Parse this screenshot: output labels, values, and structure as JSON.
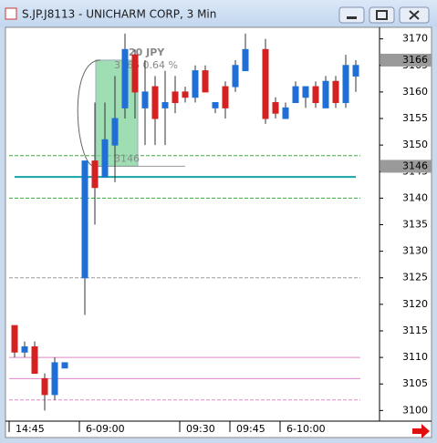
{
  "window": {
    "title": "S.JP.J8113 - UNICHARM CORP, 3 Min"
  },
  "chart_data": {
    "type": "candlestick",
    "categories": [
      "14:45",
      null,
      null,
      null,
      null,
      null,
      null,
      "6-09:00",
      null,
      null,
      null,
      null,
      null,
      null,
      null,
      null,
      null,
      "09:30",
      null,
      null,
      null,
      null,
      "09:45",
      null,
      null,
      null,
      null,
      "6-10:00",
      null,
      null,
      null,
      null,
      null,
      null,
      null
    ],
    "open": [
      3116,
      3111,
      3112,
      3106,
      3103,
      3108,
      null,
      3125,
      3147,
      3144,
      3150,
      3157,
      3167,
      3157,
      3161,
      3157,
      3160,
      3160,
      3159,
      3164,
      3157,
      3161,
      3161,
      3164,
      null,
      3168,
      3158,
      3155,
      3158,
      3159,
      3161,
      3157,
      3162,
      3158,
      3163
    ],
    "high": [
      3116,
      3113,
      3113,
      3107,
      3110,
      3109,
      null,
      3147,
      3158,
      3158,
      3163,
      3171,
      3168,
      3166,
      3163,
      3164,
      3163,
      3161,
      3165,
      3165,
      3158,
      3162,
      3166,
      3171,
      null,
      3170,
      3159,
      3158,
      3162,
      3161,
      3162,
      3163,
      3163,
      3167,
      3166
    ],
    "low": [
      3110,
      3110,
      3107,
      3100,
      3102,
      3108,
      null,
      3118,
      3135,
      3144,
      3143,
      3155,
      3155,
      3150,
      3150,
      3150,
      3156,
      3158,
      3158,
      3160,
      3156,
      3155,
      3160,
      3164,
      null,
      3154,
      3155,
      3155,
      3158,
      3157,
      3157,
      3157,
      3157,
      3157,
      3160
    ],
    "close": [
      3111,
      3112,
      3107,
      3103,
      3109,
      3109,
      null,
      3147,
      3142,
      3151,
      3155,
      3168,
      3160,
      3160,
      3155,
      3158,
      3158,
      3159,
      3164,
      3160,
      3158,
      3157,
      3165,
      3168,
      null,
      3155,
      3156,
      3157,
      3161,
      3161,
      3158,
      3162,
      3158,
      3165,
      3165
    ],
    "up_color": "#1f6fd6",
    "down_color": "#d42222",
    "ylim": [
      3098,
      3172
    ],
    "yticks": [
      3100,
      3105,
      3110,
      3115,
      3120,
      3125,
      3130,
      3135,
      3140,
      3145,
      3150,
      3155,
      3160,
      3165,
      3170
    ],
    "price_labels": [
      3166,
      3146
    ],
    "lines": [
      {
        "value": 3144,
        "color": "#18a5a5",
        "style": "solid"
      },
      {
        "value": 3148,
        "color": "#3aa83a",
        "style": "dashed"
      },
      {
        "value": 3140,
        "color": "#3aa83a",
        "style": "dashed"
      },
      {
        "value": 3125,
        "color": "#9a9a9a",
        "style": "dashed"
      },
      {
        "value": 3110,
        "color": "#e088c8",
        "style": "solid"
      },
      {
        "value": 3106,
        "color": "#e088c8",
        "style": "solid"
      },
      {
        "value": 3102,
        "color": "#e088c8",
        "style": "dashed"
      }
    ],
    "measure": {
      "from": 3146,
      "to": 3166,
      "labels": [
        "20  JPY",
        "3166  0.64 %",
        "3146"
      ]
    }
  }
}
